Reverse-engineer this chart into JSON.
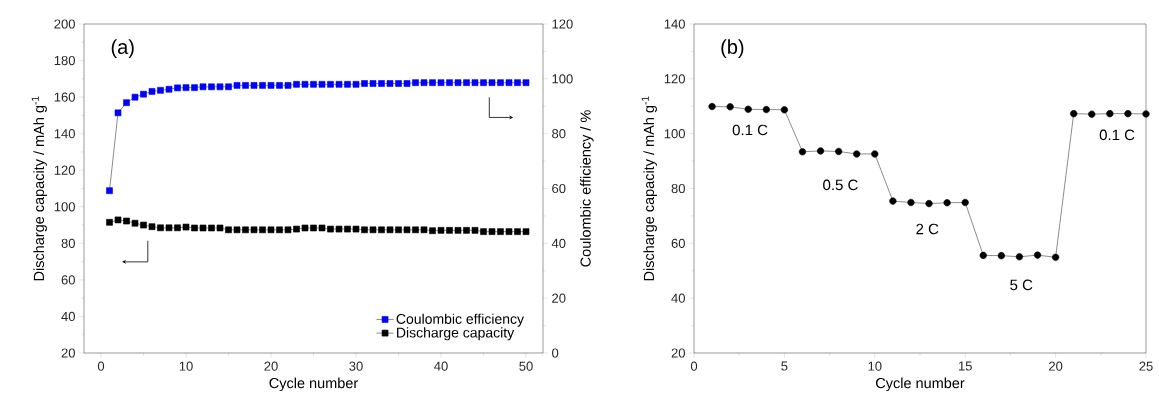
{
  "chart_data": [
    {
      "type": "line",
      "title": "(a)",
      "xlabel": "Cycle number",
      "ylabel": "Discharge capacity / mAh g$^{-1}$",
      "y2label": "Coulombic efficiency / %",
      "x": [
        1,
        2,
        3,
        4,
        5,
        6,
        7,
        8,
        9,
        10,
        11,
        12,
        13,
        14,
        15,
        16,
        17,
        18,
        19,
        20,
        21,
        22,
        23,
        24,
        25,
        26,
        27,
        28,
        29,
        30,
        31,
        32,
        33,
        34,
        35,
        36,
        37,
        38,
        39,
        40,
        41,
        42,
        43,
        44,
        45,
        46,
        47,
        48,
        49,
        50
      ],
      "series": [
        {
          "name": "Coulombic efficiency",
          "color": "#0000ff",
          "axis": "y2",
          "values": [
            59.2,
            87.6,
            91.3,
            93.3,
            94.4,
            95.4,
            95.8,
            96.2,
            96.7,
            96.8,
            96.8,
            97.1,
            97.1,
            97.1,
            97.1,
            97.6,
            97.6,
            97.6,
            97.6,
            97.6,
            97.6,
            97.6,
            98.0,
            98.0,
            98.0,
            98.0,
            98.0,
            98.0,
            98.0,
            98.0,
            98.3,
            98.3,
            98.3,
            98.3,
            98.3,
            98.3,
            98.6,
            98.6,
            98.6,
            98.6,
            98.6,
            98.6,
            98.6,
            98.6,
            98.6,
            98.6,
            98.6,
            98.6,
            98.6,
            98.6
          ]
        },
        {
          "name": "Discharge capacity",
          "color": "#000000",
          "values": [
            91.5,
            92.8,
            92.2,
            91.0,
            90.0,
            89.1,
            88.5,
            88.5,
            88.5,
            88.9,
            88.4,
            88.4,
            88.4,
            88.4,
            87.4,
            87.4,
            87.4,
            87.4,
            87.4,
            87.4,
            87.4,
            87.4,
            87.8,
            88.4,
            88.4,
            88.4,
            87.8,
            87.8,
            87.8,
            87.8,
            87.4,
            87.4,
            87.4,
            87.4,
            87.4,
            87.4,
            87.4,
            87.4,
            86.9,
            87.1,
            87.1,
            87.1,
            87.1,
            87.1,
            86.4,
            86.4,
            86.4,
            86.4,
            86.4,
            86.4
          ]
        }
      ],
      "xlim": [
        -2,
        52
      ],
      "xticks": [
        0,
        10,
        20,
        30,
        40,
        50
      ],
      "ylim": [
        20,
        200
      ],
      "yticks": [
        20,
        40,
        60,
        80,
        100,
        120,
        140,
        160,
        180,
        200
      ],
      "y2lim": [
        0,
        120
      ],
      "y2ticks": [
        0,
        20,
        40,
        60,
        80,
        100,
        120
      ],
      "legend": "bottom right",
      "marker": "square"
    },
    {
      "type": "line",
      "title": "(b)",
      "xlabel": "Cycle number",
      "ylabel": "Discharge capacity / mAh g$^{-1}$",
      "x": [
        1,
        2,
        3,
        4,
        5,
        6,
        7,
        8,
        9,
        10,
        11,
        12,
        13,
        14,
        15,
        16,
        17,
        18,
        19,
        20,
        21,
        22,
        23,
        24,
        25
      ],
      "series": [
        {
          "color": "#000000",
          "values": [
            109.9,
            109.8,
            108.9,
            108.8,
            108.7,
            93.4,
            93.7,
            93.5,
            92.6,
            92.6,
            75.4,
            74.9,
            74.5,
            74.8,
            74.9,
            55.6,
            55.5,
            55.1,
            55.7,
            54.9,
            107.3,
            107.1,
            107.3,
            107.3,
            107.2
          ]
        }
      ],
      "xlim": [
        0,
        25
      ],
      "xticks": [
        0,
        5,
        10,
        15,
        20,
        25
      ],
      "ylim": [
        20,
        140
      ],
      "yticks": [
        20,
        40,
        60,
        80,
        100,
        120,
        140
      ],
      "marker": "circle",
      "annotations": [
        "0.1 C",
        "0.5 C",
        "2 C",
        "5 C",
        "0.1 C"
      ]
    }
  ]
}
